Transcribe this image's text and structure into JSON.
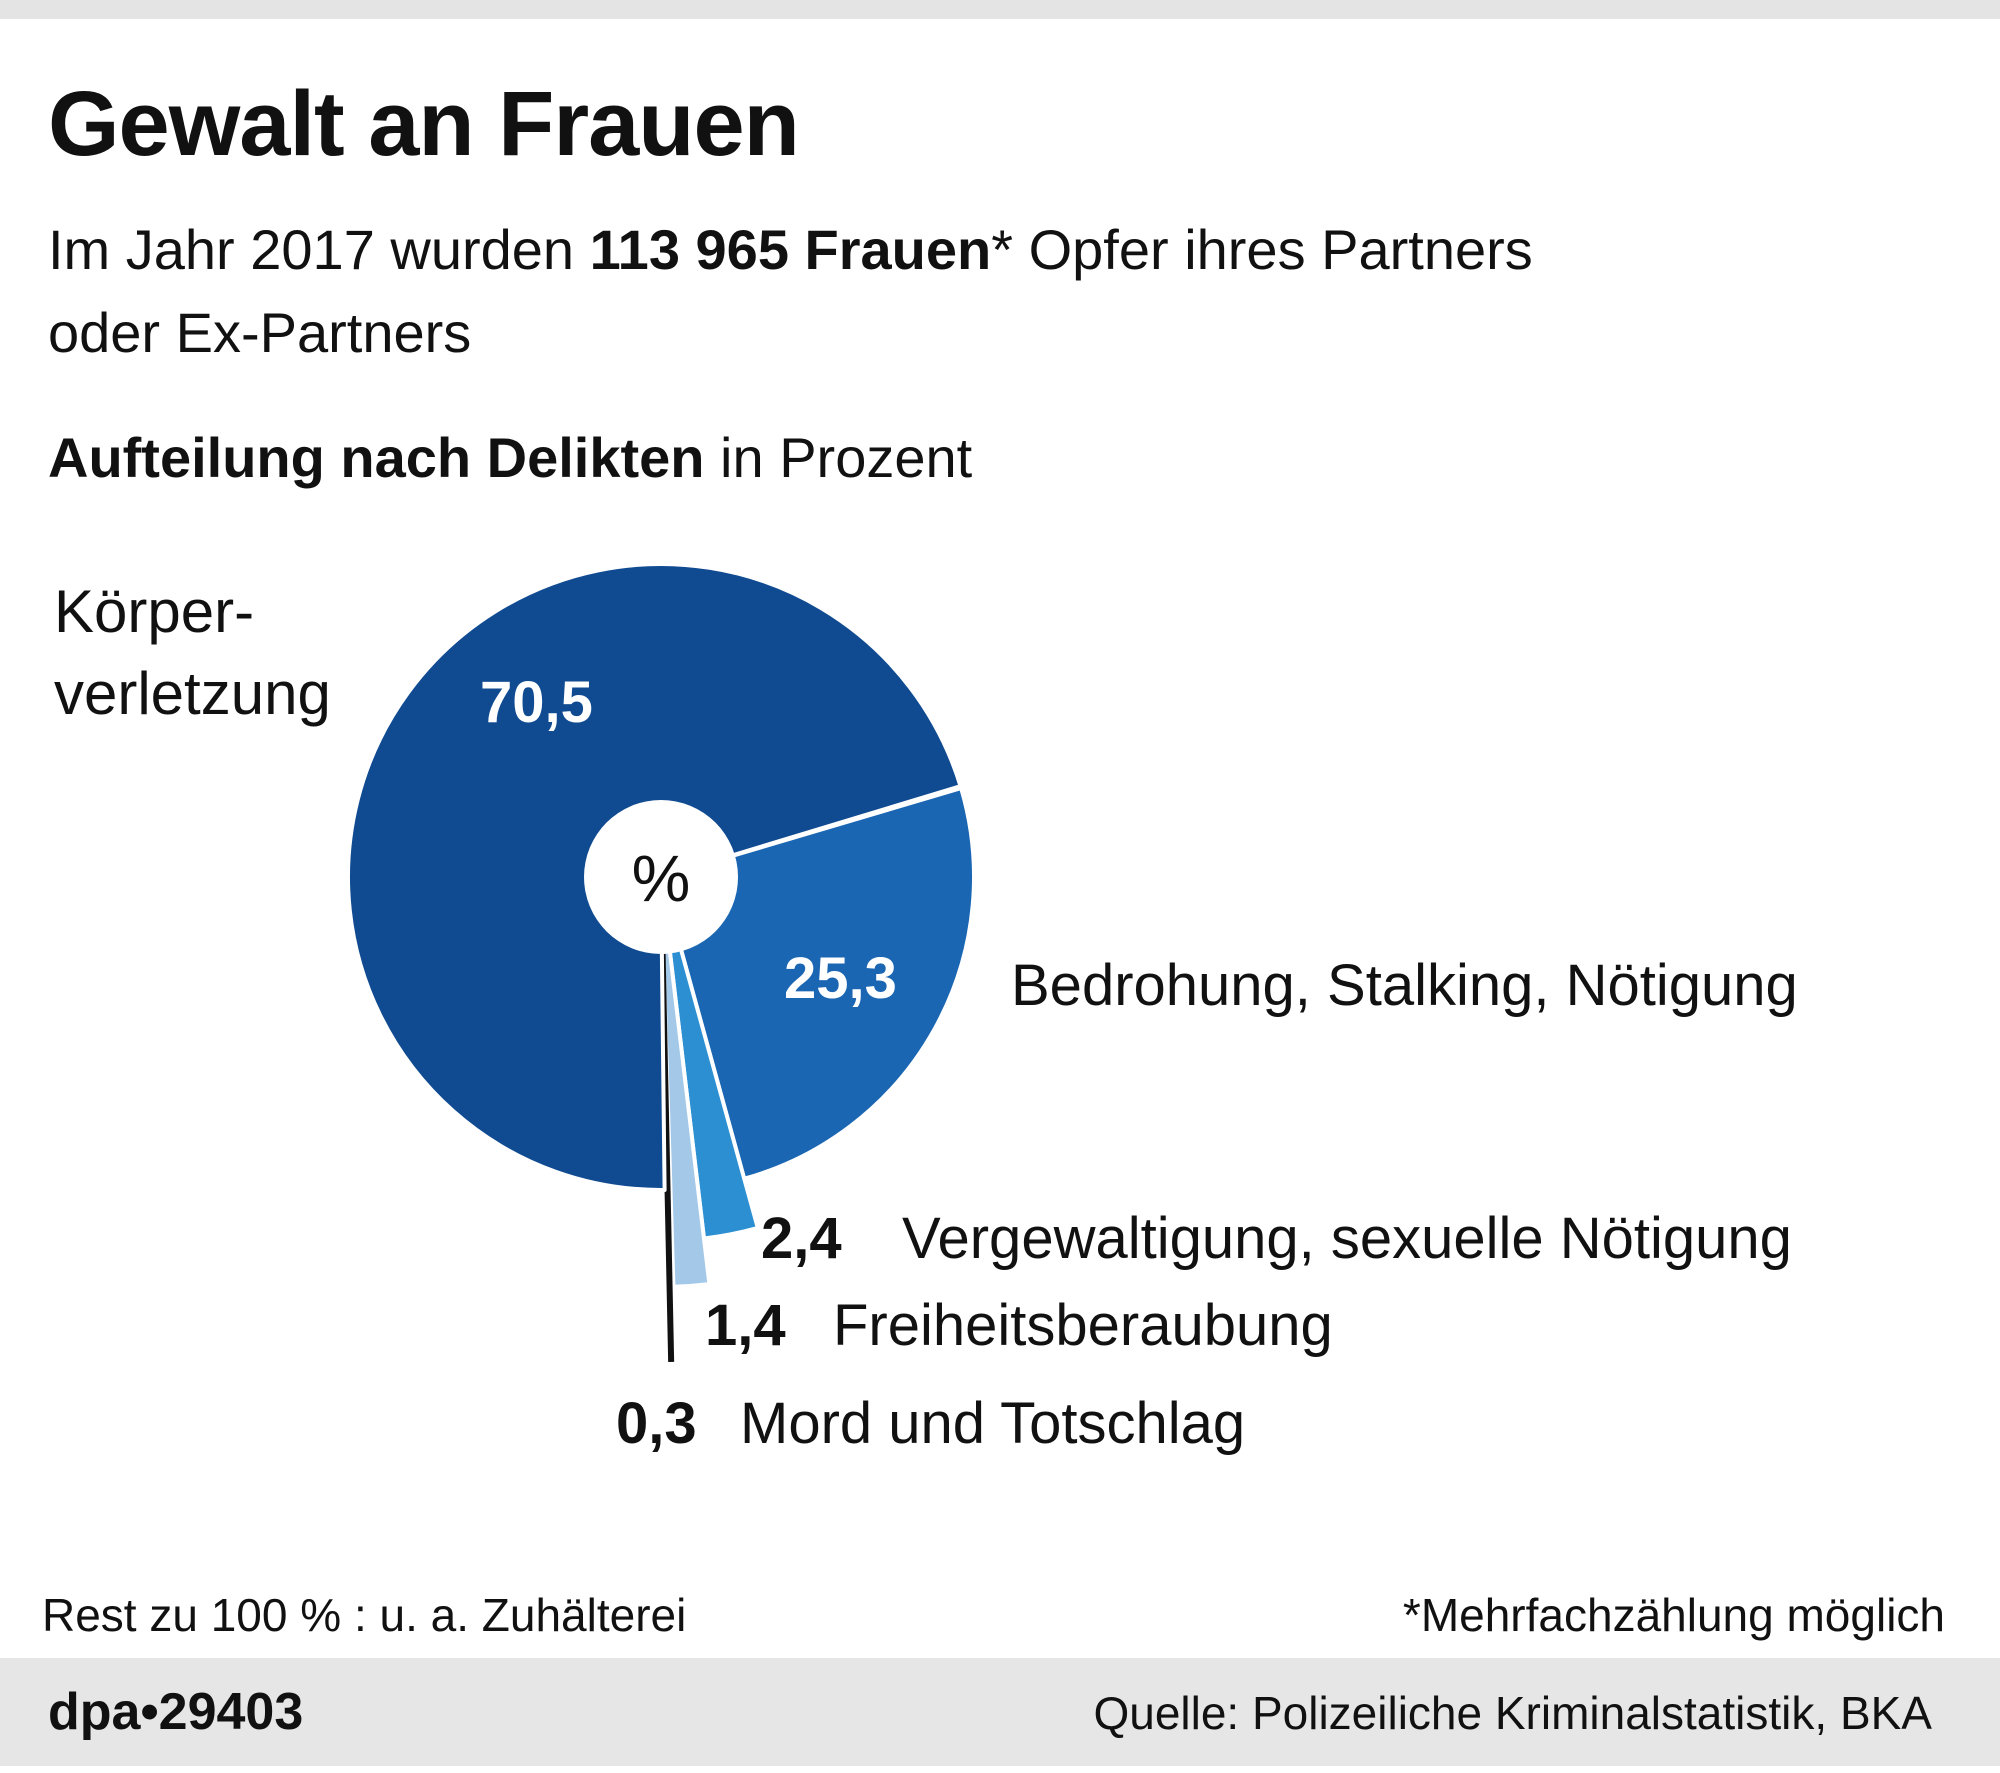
{
  "title": "Gewalt an Frauen",
  "subtitle": {
    "line1_pre": "Im Jahr 2017 wurden ",
    "line1_bold": "113 965 Frauen",
    "line1_post": "* Opfer ihres Partners",
    "line2": "oder Ex-Partners"
  },
  "section_heading": {
    "bold": "Aufteilung nach Delikten",
    "normal": " in Prozent"
  },
  "center_label": "%",
  "chart_data": {
    "type": "pie",
    "unit": "%",
    "slices": [
      {
        "label": "Körperverletzung",
        "label_lines": [
          "Körper-",
          "verletzung"
        ],
        "value": 70.5,
        "value_label": "70,5",
        "color": "#104b92"
      },
      {
        "label": "Bedrohung, Stalking, Nötigung",
        "value": 25.3,
        "value_label": "25,3",
        "color": "#1a66b3"
      },
      {
        "label": "Vergewaltigung, sexuelle Nötigung",
        "value": 2.4,
        "value_label": "2,4",
        "color": "#2b8fd2"
      },
      {
        "label": "Freiheitsberaubung",
        "value": 1.4,
        "value_label": "1,4",
        "color": "#a3c8e8"
      },
      {
        "label": "Mord und Totschlag",
        "value": 0.3,
        "value_label": "0,3",
        "color": "#111111"
      }
    ],
    "donut": true
  },
  "notes": {
    "rest": "Rest zu 100 % : u. a. Zuhälterei",
    "footnote": "*Mehrfachzählung möglich"
  },
  "footer": {
    "agency": "dpa•29403",
    "source": "Quelle: Polizeiliche Kriminalstatistik, BKA"
  }
}
